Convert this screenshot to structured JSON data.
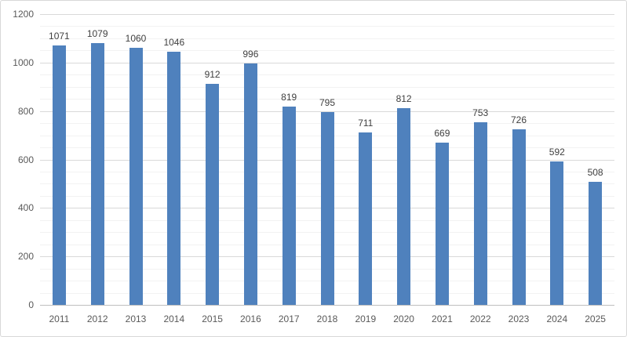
{
  "chart_data": {
    "type": "bar",
    "title": "",
    "xlabel": "",
    "ylabel": "",
    "categories": [
      "2011",
      "2012",
      "2013",
      "2014",
      "2015",
      "2016",
      "2017",
      "2018",
      "2019",
      "2020",
      "2021",
      "2022",
      "2023",
      "2024",
      "2025"
    ],
    "values": [
      1071,
      1079,
      1060,
      1046,
      912,
      996,
      819,
      795,
      711,
      812,
      669,
      753,
      726,
      592,
      508
    ],
    "data_labels_shown": true,
    "ylim": [
      0,
      1200
    ],
    "y_major_unit": 200,
    "y_minor_unit": 50,
    "y_tick_labels": [
      "0",
      "200",
      "400",
      "600",
      "800",
      "1000",
      "1200"
    ],
    "grid": "major-and-minor horizontal",
    "legend": "none",
    "colors": {
      "bar_fill": "#4f81bd",
      "major_gridline": "#d9d9d9",
      "minor_gridline": "#f2f2f2",
      "axis_line": "#bfbfbf",
      "axis_label_text": "#595959",
      "data_label_text": "#404040",
      "background": "#ffffff",
      "frame_border": "#d8d8d8"
    }
  }
}
